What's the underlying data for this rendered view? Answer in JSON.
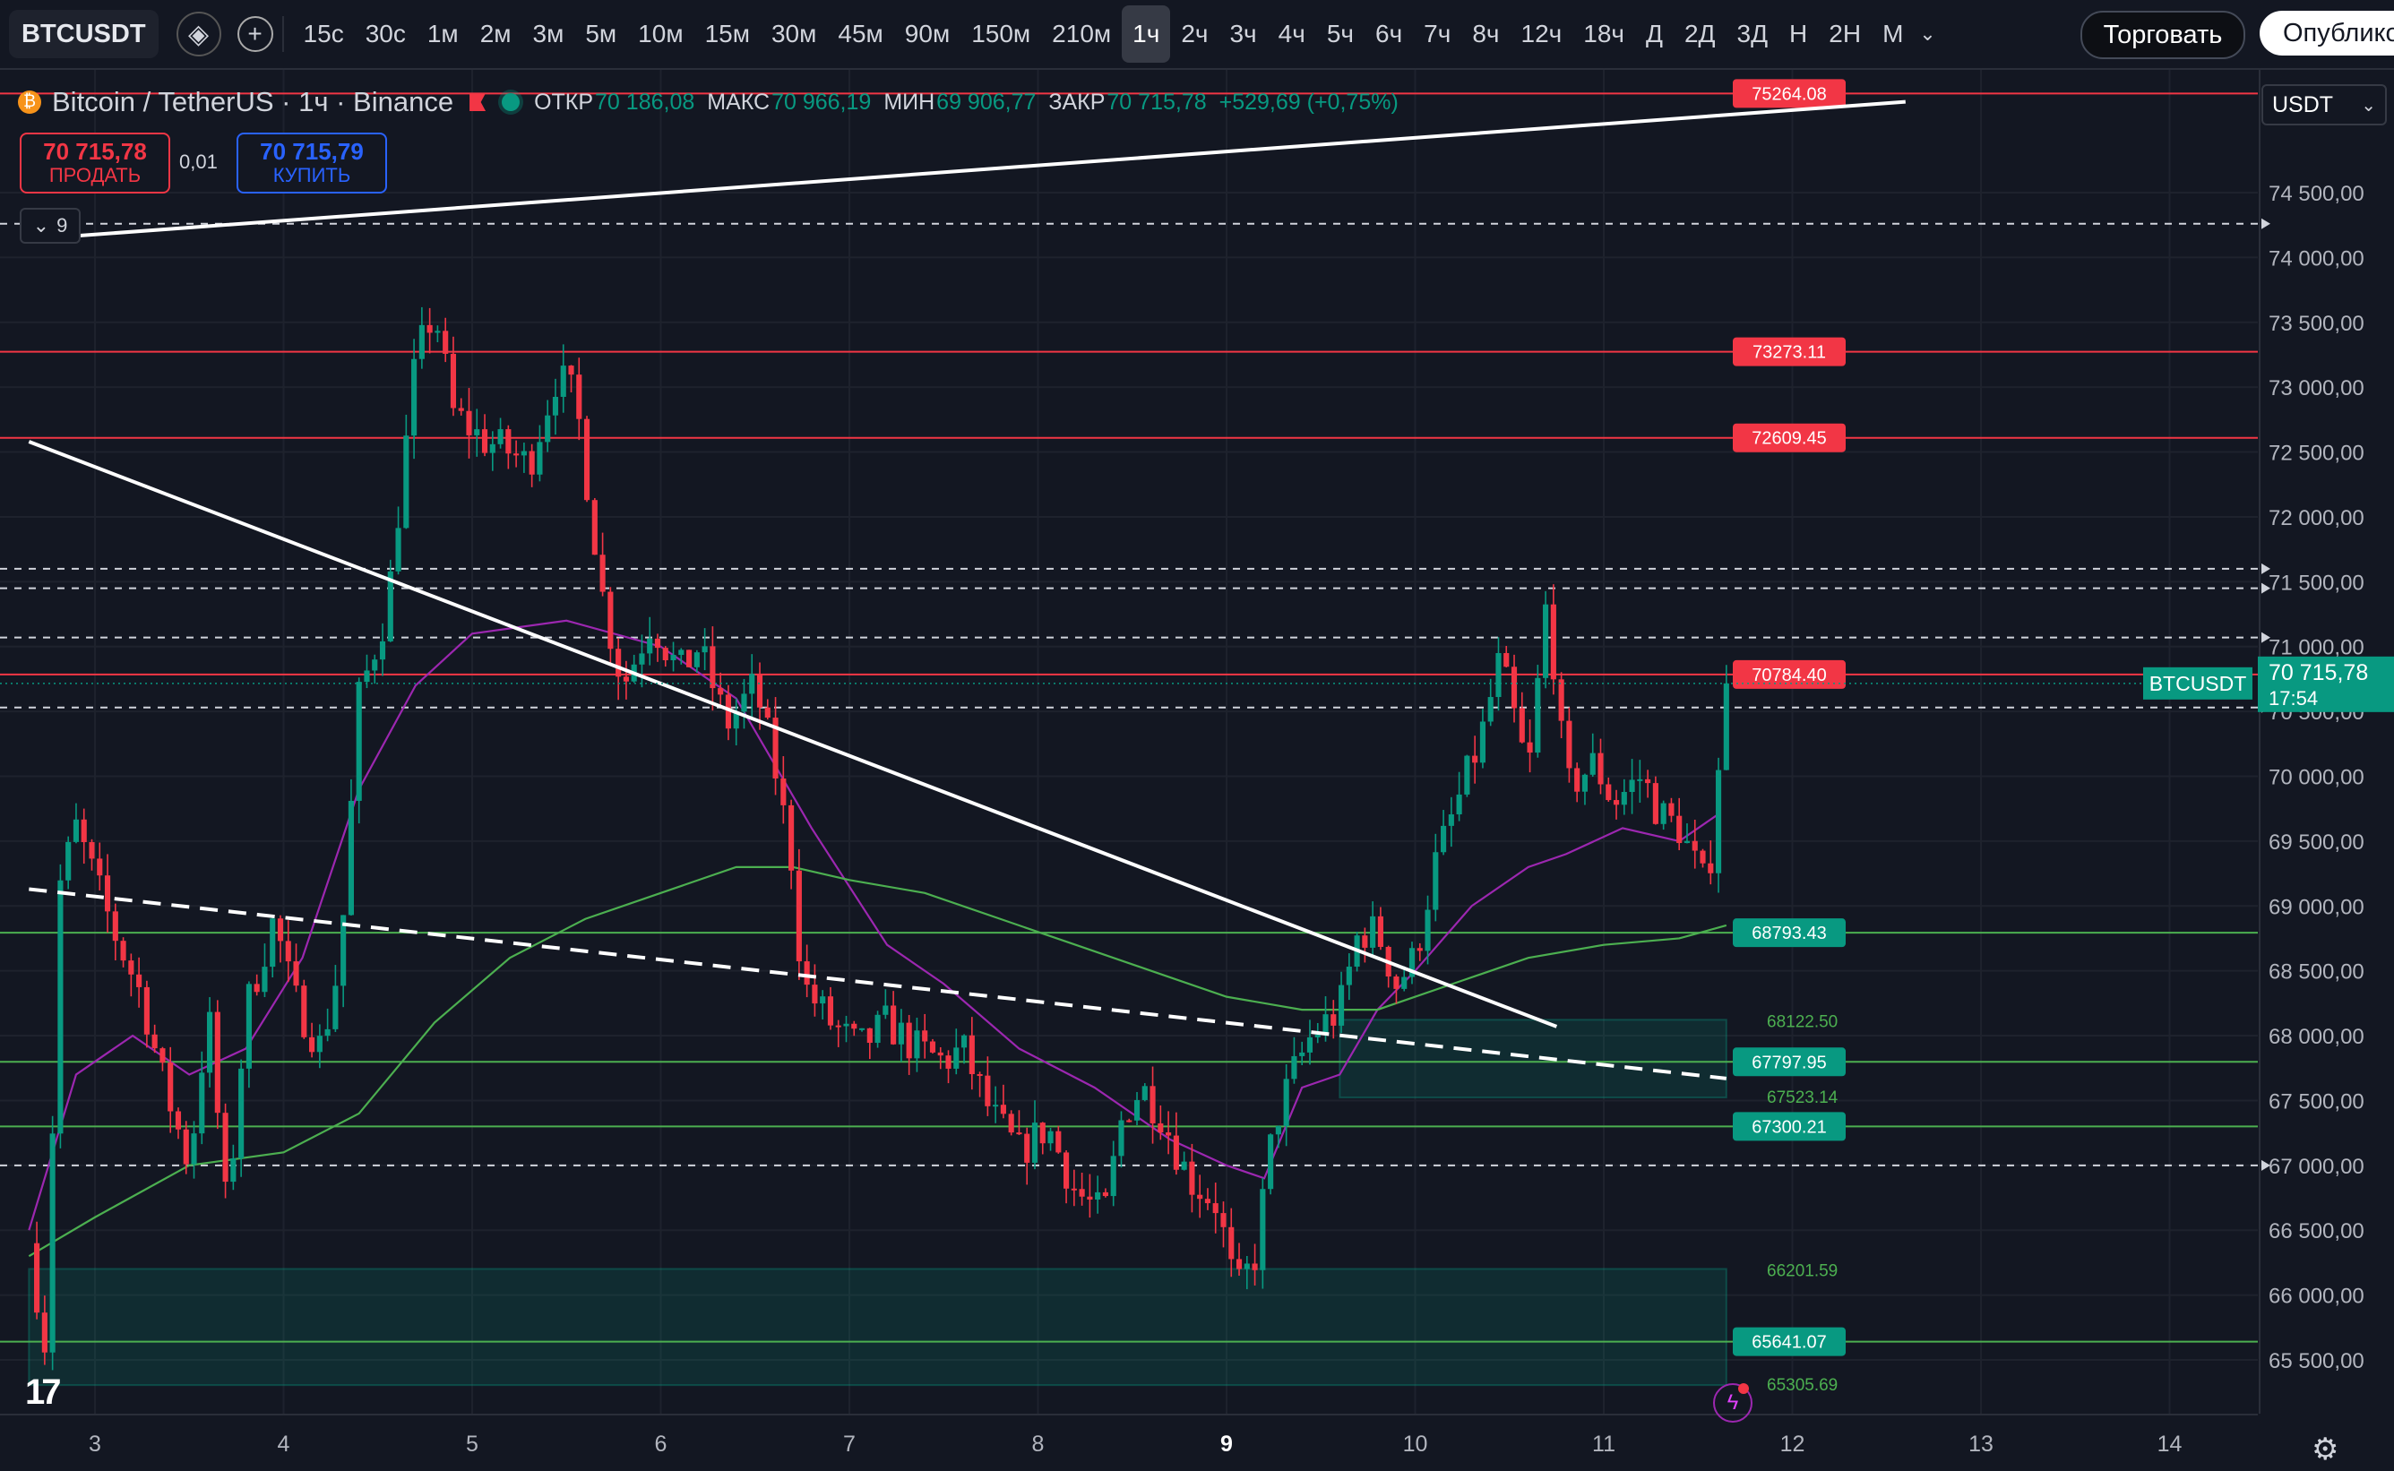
{
  "toolbar": {
    "symbol": "BTCUSDT",
    "intervals": [
      "15с",
      "30с",
      "1м",
      "2м",
      "3м",
      "5м",
      "10м",
      "15м",
      "30м",
      "45м",
      "90м",
      "150м",
      "210м",
      "1ч",
      "2ч",
      "3ч",
      "4ч",
      "5ч",
      "6ч",
      "7ч",
      "8ч",
      "12ч",
      "18ч",
      "Д",
      "2Д",
      "3Д",
      "Н",
      "2Н",
      "М"
    ],
    "active_interval": "1ч",
    "trade_label": "Торговать",
    "publish_label": "Опубликовать"
  },
  "legend": {
    "title": "Bitcoin / TetherUS · 1ч · Binance",
    "open_label": "ОТКР",
    "open": "70 186,08",
    "high_label": "МАКС",
    "high": "70 966,19",
    "low_label": "МИН",
    "low": "69 906,77",
    "close_label": "ЗАКР",
    "close": "70 715,78",
    "change": "+529,69 (+0,75%)",
    "collapse_count": "9"
  },
  "trade_panel": {
    "sell_price": "70 715,78",
    "sell_label": "ПРОДАТЬ",
    "spread": "0,01",
    "buy_price": "70 715,79",
    "buy_label": "КУПИТЬ"
  },
  "currency": "USDT",
  "price_tag": {
    "symbol": "BTCUSDT",
    "price": "70 715,78",
    "countdown": "17:54"
  },
  "colors": {
    "up": "#089981",
    "down": "#f23645",
    "ma_fast": "#9c27b0",
    "ma_slow": "#4caf50",
    "background": "#131722",
    "resistance": "#f23645",
    "support": "#4caf50"
  },
  "chart_data": {
    "type": "candlestick",
    "symbol": "BTCUSDT",
    "timeframe": "1h",
    "ylim": [
      65200,
      75400
    ],
    "y_ticks": [
      65500,
      66000,
      66500,
      67000,
      67500,
      68000,
      68500,
      69000,
      69500,
      70000,
      70500,
      71000,
      71500,
      72000,
      72500,
      73000,
      73500,
      74000,
      74500
    ],
    "y_tick_labels": [
      "65 500,00",
      "66 000,00",
      "66 500,00",
      "67 000,00",
      "67 500,00",
      "68 000,00",
      "68 500,00",
      "69 000,00",
      "69 500,00",
      "70 000,00",
      "70 500,00",
      "71 000,00",
      "71 500,00",
      "72 000,00",
      "72 500,00",
      "73 000,00",
      "73 500,00",
      "74 000,00",
      "74 500,00"
    ],
    "x_day_range": [
      2.65,
      14.6
    ],
    "x_ticks": [
      "3",
      "4",
      "5",
      "6",
      "7",
      "8",
      "9",
      "10",
      "11",
      "12",
      "13",
      "14"
    ],
    "x_tick_bold": "9",
    "close_path": [
      [
        2.65,
        66400
      ],
      [
        2.75,
        65500
      ],
      [
        2.8,
        69100
      ],
      [
        2.9,
        69600
      ],
      [
        3.0,
        69200
      ],
      [
        3.1,
        68800
      ],
      [
        3.25,
        68300
      ],
      [
        3.35,
        67700
      ],
      [
        3.5,
        67000
      ],
      [
        3.6,
        68200
      ],
      [
        3.7,
        66600
      ],
      [
        3.8,
        68200
      ],
      [
        3.95,
        68900
      ],
      [
        4.05,
        68300
      ],
      [
        4.2,
        67900
      ],
      [
        4.3,
        68600
      ],
      [
        4.4,
        70600
      ],
      [
        4.55,
        71300
      ],
      [
        4.7,
        73200
      ],
      [
        4.8,
        73600
      ],
      [
        4.9,
        72800
      ],
      [
        5.05,
        72600
      ],
      [
        5.2,
        72500
      ],
      [
        5.3,
        72400
      ],
      [
        5.45,
        73100
      ],
      [
        5.55,
        72900
      ],
      [
        5.7,
        71300
      ],
      [
        5.8,
        70700
      ],
      [
        5.95,
        71200
      ],
      [
        6.1,
        70800
      ],
      [
        6.2,
        71000
      ],
      [
        6.35,
        70400
      ],
      [
        6.5,
        70700
      ],
      [
        6.6,
        70100
      ],
      [
        6.7,
        69300
      ],
      [
        6.75,
        68400
      ],
      [
        6.9,
        68100
      ],
      [
        7.05,
        67900
      ],
      [
        7.2,
        68100
      ],
      [
        7.35,
        67900
      ],
      [
        7.5,
        67800
      ],
      [
        7.6,
        67900
      ],
      [
        7.75,
        67400
      ],
      [
        7.9,
        67100
      ],
      [
        8.05,
        67300
      ],
      [
        8.2,
        66800
      ],
      [
        8.35,
        66600
      ],
      [
        8.45,
        67400
      ],
      [
        8.55,
        67600
      ],
      [
        8.65,
        67400
      ],
      [
        8.8,
        66900
      ],
      [
        8.95,
        66700
      ],
      [
        9.05,
        66000
      ],
      [
        9.15,
        66300
      ],
      [
        9.25,
        67300
      ],
      [
        9.35,
        67700
      ],
      [
        9.45,
        68000
      ],
      [
        9.6,
        68200
      ],
      [
        9.7,
        68800
      ],
      [
        9.8,
        68800
      ],
      [
        9.9,
        68400
      ],
      [
        10.0,
        68600
      ],
      [
        10.1,
        69300
      ],
      [
        10.2,
        69700
      ],
      [
        10.35,
        70300
      ],
      [
        10.45,
        70900
      ],
      [
        10.6,
        70000
      ],
      [
        10.7,
        71400
      ],
      [
        10.8,
        69900
      ],
      [
        10.95,
        70100
      ],
      [
        11.05,
        69800
      ],
      [
        11.2,
        70000
      ],
      [
        11.3,
        69700
      ],
      [
        11.4,
        69600
      ],
      [
        11.55,
        69100
      ],
      [
        11.6,
        70000
      ],
      [
        11.65,
        70716
      ]
    ],
    "series": [
      {
        "name": "MA fast",
        "values": [
          [
            2.65,
            66500
          ],
          [
            2.9,
            67700
          ],
          [
            3.2,
            68000
          ],
          [
            3.5,
            67700
          ],
          [
            3.8,
            67900
          ],
          [
            4.1,
            68600
          ],
          [
            4.4,
            69900
          ],
          [
            4.7,
            70700
          ],
          [
            5.0,
            71100
          ],
          [
            5.5,
            71200
          ],
          [
            6.0,
            71000
          ],
          [
            6.4,
            70600
          ],
          [
            6.8,
            69600
          ],
          [
            7.2,
            68700
          ],
          [
            7.5,
            68400
          ],
          [
            7.9,
            67900
          ],
          [
            8.3,
            67600
          ],
          [
            8.7,
            67200
          ],
          [
            9.0,
            67000
          ],
          [
            9.2,
            66900
          ],
          [
            9.4,
            67600
          ],
          [
            9.6,
            67700
          ],
          [
            9.8,
            68200
          ],
          [
            10.0,
            68500
          ],
          [
            10.3,
            69000
          ],
          [
            10.6,
            69300
          ],
          [
            10.8,
            69400
          ],
          [
            11.1,
            69600
          ],
          [
            11.4,
            69500
          ],
          [
            11.6,
            69700
          ]
        ]
      },
      {
        "name": "MA slow",
        "values": [
          [
            2.65,
            66300
          ],
          [
            3.0,
            66600
          ],
          [
            3.5,
            67000
          ],
          [
            4.0,
            67100
          ],
          [
            4.4,
            67400
          ],
          [
            4.8,
            68100
          ],
          [
            5.2,
            68600
          ],
          [
            5.6,
            68900
          ],
          [
            6.0,
            69100
          ],
          [
            6.4,
            69300
          ],
          [
            6.7,
            69300
          ],
          [
            7.0,
            69200
          ],
          [
            7.4,
            69100
          ],
          [
            7.8,
            68900
          ],
          [
            8.2,
            68700
          ],
          [
            8.6,
            68500
          ],
          [
            9.0,
            68300
          ],
          [
            9.4,
            68200
          ],
          [
            9.8,
            68200
          ],
          [
            10.2,
            68400
          ],
          [
            10.6,
            68600
          ],
          [
            11.0,
            68700
          ],
          [
            11.4,
            68750
          ],
          [
            11.65,
            68850
          ]
        ]
      }
    ],
    "horizontal_levels": [
      {
        "price": 75264.08,
        "label": "75264.08",
        "kind": "resistance"
      },
      {
        "price": 73273.11,
        "label": "73273.11",
        "kind": "resistance"
      },
      {
        "price": 72609.45,
        "label": "72609.45",
        "kind": "resistance"
      },
      {
        "price": 70784.4,
        "label": "70784.40",
        "kind": "resistance"
      },
      {
        "price": 68793.43,
        "label": "68793.43",
        "kind": "support"
      },
      {
        "price": 67797.95,
        "label": "67797.95",
        "kind": "support"
      },
      {
        "price": 67300.21,
        "label": "67300.21",
        "kind": "support"
      },
      {
        "price": 65641.07,
        "label": "65641.07",
        "kind": "support"
      }
    ],
    "dashed_levels": [
      74260,
      71600,
      71450,
      71070,
      70530,
      67000
    ],
    "zones": [
      {
        "top": 68122.5,
        "bottom": 67523.14,
        "x_from": 9.6,
        "x_to": 11.65,
        "top_label": "68122.50",
        "bottom_label": "67523.14"
      },
      {
        "top": 66201.59,
        "bottom": 65305.69,
        "x_from": 2.65,
        "x_to": 11.65,
        "top_label": "66201.59",
        "bottom_label": "65305.69"
      }
    ],
    "trendlines": [
      {
        "from": [
          2.65,
          74140
        ],
        "to": [
          12.6,
          75200
        ],
        "style": "solid"
      },
      {
        "from": [
          2.65,
          72580
        ],
        "to": [
          10.75,
          68070
        ],
        "style": "solid"
      },
      {
        "from": [
          2.65,
          69130
        ],
        "to": [
          11.65,
          67670
        ],
        "style": "dashed"
      }
    ]
  }
}
